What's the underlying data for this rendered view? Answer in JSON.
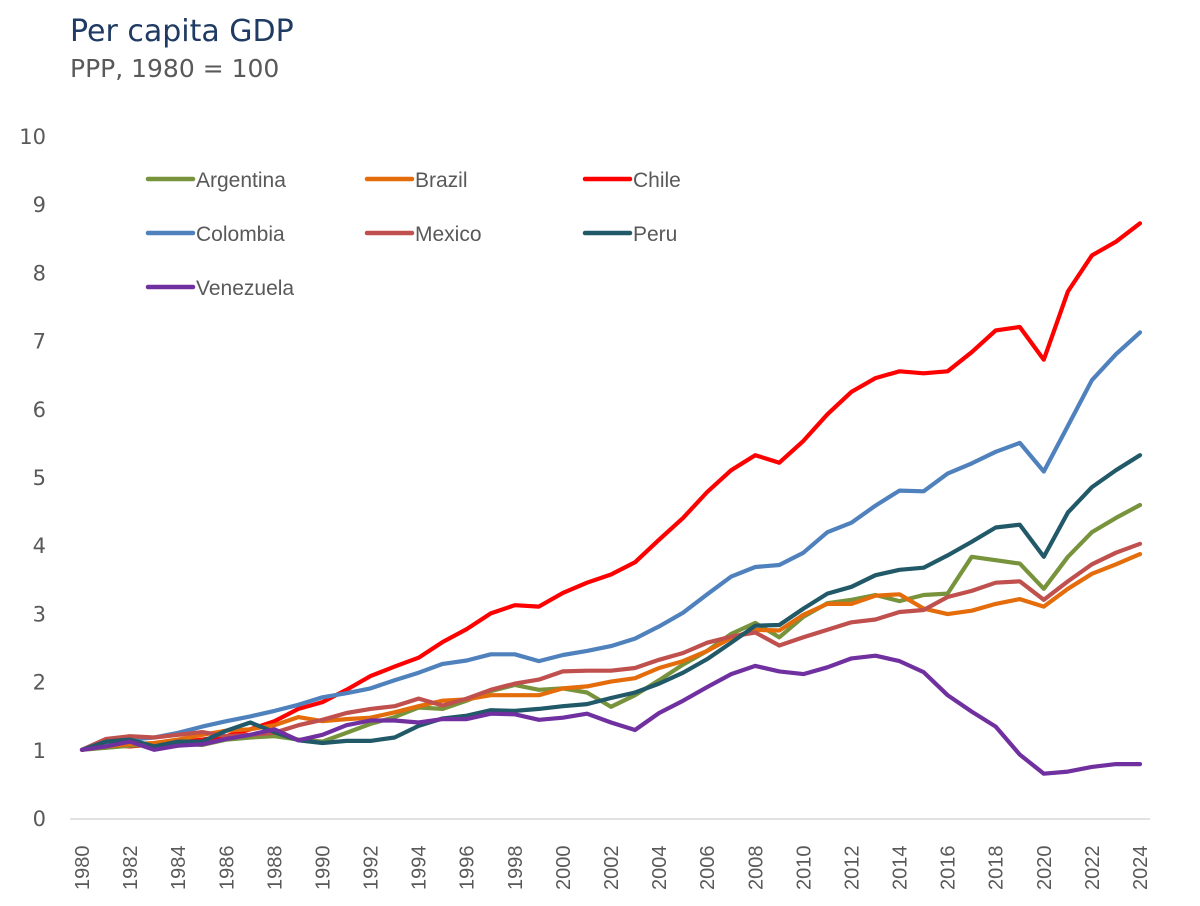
{
  "chart_data": {
    "type": "line",
    "title": "Per capita GDP",
    "subtitle": "PPP, 1980 = 100",
    "xlabel": "",
    "ylabel": "",
    "ylim": [
      0,
      10
    ],
    "yticks": [
      "0",
      "1",
      "2",
      "3",
      "4",
      "5",
      "6",
      "7",
      "8",
      "9",
      "10"
    ],
    "xlim": [
      1980,
      2024
    ],
    "xtick_labels": [
      "1980",
      "1982",
      "1984",
      "1986",
      "1988",
      "1990",
      "1992",
      "1994",
      "1996",
      "1998",
      "2000",
      "2002",
      "2004",
      "2006",
      "2008",
      "2010",
      "2012",
      "2014",
      "2016",
      "2018",
      "2020",
      "2022",
      "2024"
    ],
    "grid": false,
    "legend_position": "top-left",
    "x": [
      1980,
      1981,
      1982,
      1983,
      1984,
      1985,
      1986,
      1987,
      1988,
      1989,
      1990,
      1991,
      1992,
      1993,
      1994,
      1995,
      1996,
      1997,
      1998,
      1999,
      2000,
      2001,
      2002,
      2003,
      2004,
      2005,
      2006,
      2007,
      2008,
      2009,
      2010,
      2011,
      2012,
      2013,
      2014,
      2015,
      2016,
      2017,
      2018,
      2019,
      2020,
      2021,
      2022,
      2023,
      2024
    ],
    "series": [
      {
        "name": "Argentina",
        "color": "#77933c",
        "values": [
          1.0,
          1.03,
          1.06,
          1.08,
          1.1,
          1.07,
          1.15,
          1.18,
          1.2,
          1.15,
          1.12,
          1.25,
          1.38,
          1.48,
          1.62,
          1.6,
          1.72,
          1.86,
          1.95,
          1.88,
          1.9,
          1.84,
          1.63,
          1.8,
          2.02,
          2.25,
          2.45,
          2.7,
          2.86,
          2.65,
          2.95,
          3.15,
          3.2,
          3.27,
          3.18,
          3.27,
          3.29,
          3.83,
          3.78,
          3.73,
          3.36,
          3.83,
          4.19,
          4.4,
          4.59
        ]
      },
      {
        "name": "Brazil",
        "color": "#e46c0a",
        "values": [
          1.0,
          1.05,
          1.08,
          1.1,
          1.15,
          1.22,
          1.28,
          1.3,
          1.36,
          1.48,
          1.42,
          1.45,
          1.47,
          1.55,
          1.64,
          1.72,
          1.74,
          1.8,
          1.8,
          1.8,
          1.9,
          1.93,
          2.0,
          2.05,
          2.2,
          2.3,
          2.45,
          2.64,
          2.76,
          2.75,
          2.98,
          3.14,
          3.14,
          3.26,
          3.28,
          3.07,
          2.99,
          3.04,
          3.14,
          3.21,
          3.1,
          3.36,
          3.58,
          3.72,
          3.87
        ]
      },
      {
        "name": "Chile",
        "color": "#ff0000",
        "values": [
          1.0,
          1.07,
          1.05,
          1.08,
          1.11,
          1.15,
          1.2,
          1.3,
          1.42,
          1.6,
          1.7,
          1.88,
          2.08,
          2.22,
          2.35,
          2.58,
          2.77,
          3.0,
          3.12,
          3.1,
          3.3,
          3.45,
          3.57,
          3.75,
          4.08,
          4.4,
          4.78,
          5.1,
          5.32,
          5.21,
          5.53,
          5.92,
          6.25,
          6.45,
          6.55,
          6.52,
          6.55,
          6.83,
          7.15,
          7.2,
          6.72,
          7.72,
          8.25,
          8.45,
          8.72
        ]
      },
      {
        "name": "Colombia",
        "color": "#4f81bd",
        "values": [
          1.0,
          1.1,
          1.15,
          1.18,
          1.25,
          1.34,
          1.42,
          1.49,
          1.57,
          1.66,
          1.77,
          1.83,
          1.9,
          2.02,
          2.13,
          2.26,
          2.31,
          2.4,
          2.4,
          2.3,
          2.39,
          2.45,
          2.52,
          2.63,
          2.81,
          3.01,
          3.28,
          3.54,
          3.68,
          3.71,
          3.89,
          4.19,
          4.33,
          4.58,
          4.8,
          4.79,
          5.05,
          5.2,
          5.37,
          5.5,
          5.08,
          5.75,
          6.42,
          6.8,
          7.12
        ]
      },
      {
        "name": "Mexico",
        "color": "#c0504d",
        "values": [
          1.0,
          1.16,
          1.2,
          1.18,
          1.22,
          1.26,
          1.2,
          1.22,
          1.25,
          1.36,
          1.44,
          1.54,
          1.6,
          1.64,
          1.75,
          1.65,
          1.75,
          1.88,
          1.97,
          2.03,
          2.15,
          2.16,
          2.16,
          2.2,
          2.32,
          2.42,
          2.57,
          2.66,
          2.72,
          2.53,
          2.65,
          2.76,
          2.87,
          2.91,
          3.02,
          3.05,
          3.24,
          3.33,
          3.45,
          3.47,
          3.2,
          3.47,
          3.72,
          3.89,
          4.02
        ]
      },
      {
        "name": "Peru",
        "color": "#215968",
        "values": [
          1.0,
          1.12,
          1.15,
          1.05,
          1.12,
          1.12,
          1.28,
          1.4,
          1.26,
          1.14,
          1.1,
          1.13,
          1.13,
          1.18,
          1.35,
          1.46,
          1.5,
          1.58,
          1.57,
          1.6,
          1.64,
          1.67,
          1.76,
          1.84,
          1.97,
          2.13,
          2.33,
          2.57,
          2.82,
          2.83,
          3.07,
          3.29,
          3.39,
          3.56,
          3.64,
          3.67,
          3.85,
          4.05,
          4.26,
          4.3,
          3.83,
          4.48,
          4.85,
          5.1,
          5.32
        ]
      },
      {
        "name": "Venezuela",
        "color": "#7030a0",
        "values": [
          1.0,
          1.05,
          1.12,
          1.0,
          1.06,
          1.08,
          1.16,
          1.22,
          1.3,
          1.14,
          1.22,
          1.36,
          1.43,
          1.43,
          1.4,
          1.45,
          1.45,
          1.53,
          1.52,
          1.44,
          1.47,
          1.53,
          1.4,
          1.29,
          1.54,
          1.72,
          1.92,
          2.11,
          2.23,
          2.15,
          2.11,
          2.21,
          2.34,
          2.38,
          2.3,
          2.14,
          1.8,
          1.56,
          1.34,
          0.93,
          0.65,
          0.68,
          0.75,
          0.79,
          0.79
        ]
      }
    ]
  }
}
